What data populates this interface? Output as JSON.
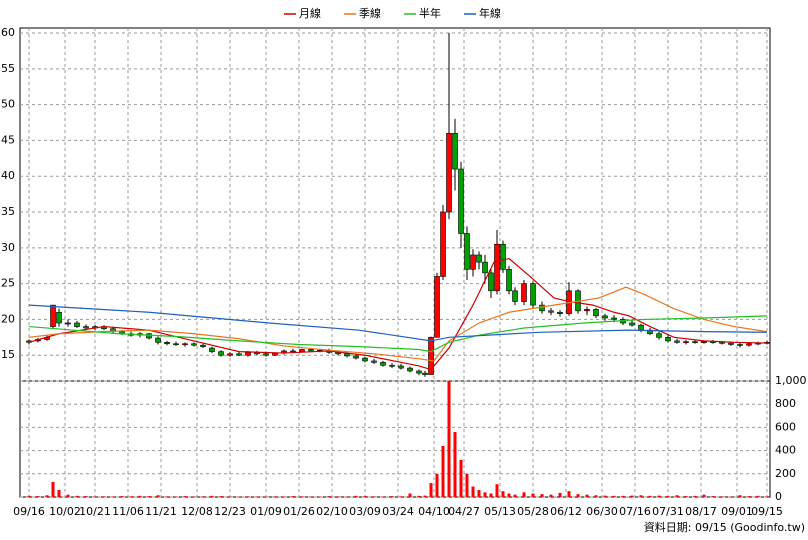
{
  "chart_data": [
    {
      "type": "candlestick",
      "grid": true,
      "legend": "top",
      "up_color": "#ff0000",
      "down_color": "#00a000",
      "xlim": [
        -3,
        247
      ],
      "ylim": [
        11.4,
        60.7
      ],
      "yticks": [
        15,
        20,
        25,
        30,
        35,
        40,
        45,
        50,
        55,
        60
      ],
      "series": [
        {
          "name": "月線",
          "color": "#cc0000",
          "x": [
            0,
            10,
            25,
            40,
            55,
            70,
            85,
            100,
            112,
            130,
            134,
            140,
            148,
            155,
            160,
            167,
            175,
            180,
            188,
            195,
            200,
            207,
            215,
            225,
            235,
            246
          ],
          "values": [
            16.8,
            18,
            19,
            18.5,
            17,
            15.5,
            15.3,
            15.6,
            15,
            13.5,
            13,
            16,
            22,
            28,
            28.5,
            26,
            23,
            22.5,
            22,
            21,
            20.5,
            19,
            17.5,
            17,
            16.8,
            16.7
          ]
        },
        {
          "name": "季線",
          "color": "#e8761e",
          "x": [
            0,
            10,
            25,
            40,
            55,
            70,
            85,
            100,
            115,
            130,
            135,
            140,
            150,
            160,
            175,
            190,
            199,
            205,
            215,
            225,
            235,
            246
          ],
          "values": [
            17.5,
            18,
            18.3,
            18.5,
            18,
            17.3,
            16.3,
            15.7,
            15.2,
            14.5,
            14.2,
            17,
            19.5,
            21,
            22,
            23,
            24.5,
            23.5,
            21.5,
            20,
            19,
            18.3
          ]
        },
        {
          "name": "半年",
          "color": "#22c022",
          "x": [
            0,
            15,
            30,
            50,
            70,
            90,
            110,
            130,
            134,
            140,
            150,
            165,
            185,
            205,
            225,
            246
          ],
          "values": [
            19,
            18.5,
            18,
            17.6,
            17,
            16.5,
            16.2,
            15.8,
            15.5,
            16.8,
            17.8,
            18.8,
            19.5,
            20,
            20.2,
            20.5
          ]
        },
        {
          "name": "年線",
          "color": "#1f5fc0",
          "x": [
            0,
            40,
            80,
            110,
            134,
            140,
            170,
            200,
            225,
            246
          ],
          "values": [
            22,
            21,
            19.5,
            18.5,
            17,
            17.5,
            18.2,
            18.5,
            18.3,
            18.2
          ]
        }
      ],
      "x": [
        0,
        3,
        6,
        8,
        10,
        13,
        16,
        19,
        22,
        25,
        28,
        31,
        34,
        37,
        40,
        43,
        46,
        49,
        52,
        55,
        58,
        61,
        64,
        67,
        70,
        73,
        76,
        79,
        82,
        85,
        88,
        91,
        94,
        97,
        100,
        103,
        106,
        109,
        112,
        115,
        118,
        121,
        124,
        127,
        130,
        132,
        134,
        136,
        138,
        140,
        142,
        144,
        146,
        148,
        150,
        152,
        154,
        156,
        158,
        160,
        162,
        165,
        168,
        171,
        174,
        177,
        180,
        183,
        186,
        189,
        192,
        195,
        198,
        201,
        204,
        207,
        210,
        213,
        216,
        219,
        222,
        225,
        228,
        231,
        234,
        237,
        240,
        243,
        246
      ],
      "ohlc": [
        [
          16.8,
          17.2,
          16.5,
          17
        ],
        [
          17,
          17.4,
          16.8,
          17.2
        ],
        [
          17.2,
          17.8,
          17,
          17.5
        ],
        [
          19,
          22,
          18.8,
          22
        ],
        [
          21,
          21.5,
          19,
          19.5
        ],
        [
          19.5,
          20,
          19,
          19.5
        ],
        [
          19.5,
          19.8,
          18.8,
          19
        ],
        [
          19,
          19.3,
          18.5,
          18.8
        ],
        [
          18.8,
          19.2,
          18.5,
          19
        ],
        [
          19,
          19.2,
          18.5,
          18.7
        ],
        [
          18.7,
          19,
          18,
          18.3
        ],
        [
          18.3,
          18.5,
          17.8,
          18
        ],
        [
          18,
          18.3,
          17.6,
          17.8
        ],
        [
          17.8,
          18.2,
          17.5,
          18
        ],
        [
          18,
          18.1,
          17.2,
          17.4
        ],
        [
          17.4,
          17.6,
          16.5,
          16.8
        ],
        [
          16.8,
          17,
          16.4,
          16.6
        ],
        [
          16.6,
          16.9,
          16.3,
          16.5
        ],
        [
          16.5,
          16.8,
          16.2,
          16.6
        ],
        [
          16.6,
          16.8,
          16.2,
          16.4
        ],
        [
          16.4,
          16.6,
          16,
          16.2
        ],
        [
          16,
          16.2,
          15.3,
          15.5
        ],
        [
          15.5,
          15.7,
          14.8,
          15
        ],
        [
          15,
          15.4,
          14.8,
          15.2
        ],
        [
          15.2,
          15.5,
          14.9,
          15
        ],
        [
          15,
          15.6,
          14.8,
          15.4
        ],
        [
          15.4,
          15.6,
          15,
          15.2
        ],
        [
          15.2,
          15.5,
          14.8,
          15
        ],
        [
          15,
          15.4,
          14.9,
          15.3
        ],
        [
          15.3,
          15.8,
          15.1,
          15.6
        ],
        [
          15.6,
          15.9,
          15.3,
          15.5
        ],
        [
          15.5,
          15.9,
          15.4,
          15.8
        ],
        [
          15.8,
          16,
          15.5,
          15.6
        ],
        [
          15.6,
          15.9,
          15.4,
          15.7
        ],
        [
          15.7,
          15.9,
          15.2,
          15.4
        ],
        [
          15.4,
          15.6,
          15,
          15.2
        ],
        [
          15.2,
          15.4,
          14.7,
          14.9
        ],
        [
          14.9,
          15.1,
          14.4,
          14.6
        ],
        [
          14.6,
          14.8,
          14,
          14.2
        ],
        [
          14.2,
          14.5,
          13.8,
          14
        ],
        [
          14,
          14.2,
          13.4,
          13.6
        ],
        [
          13.6,
          13.9,
          13.2,
          13.5
        ],
        [
          13.5,
          13.8,
          13,
          13.2
        ],
        [
          13.2,
          13.4,
          12.6,
          12.8
        ],
        [
          12.8,
          13,
          12.2,
          12.5
        ],
        [
          12.5,
          12.8,
          12,
          12.3
        ],
        [
          12.3,
          17.6,
          12.3,
          17.5
        ],
        [
          17.5,
          26.5,
          17.5,
          26
        ],
        [
          26,
          36,
          25.5,
          35
        ],
        [
          35,
          60,
          34,
          46
        ],
        [
          46,
          48,
          38,
          41
        ],
        [
          41,
          42,
          30,
          32
        ],
        [
          32,
          33,
          25.5,
          27
        ],
        [
          27,
          29.8,
          26,
          29
        ],
        [
          29,
          29.5,
          27,
          28
        ],
        [
          28,
          29,
          25,
          26.5
        ],
        [
          26.5,
          27,
          23,
          24
        ],
        [
          24,
          32.5,
          23.5,
          30.5
        ],
        [
          30.5,
          31,
          26.5,
          27
        ],
        [
          27,
          27.5,
          23.5,
          24
        ],
        [
          24,
          24.5,
          22,
          22.5
        ],
        [
          22.5,
          25.5,
          22,
          25
        ],
        [
          25,
          25.3,
          21.5,
          22
        ],
        [
          22,
          22.5,
          20.8,
          21.2
        ],
        [
          21.2,
          21.6,
          20.6,
          21
        ],
        [
          21,
          21.3,
          20.4,
          20.8
        ],
        [
          20.8,
          25.2,
          20.5,
          24
        ],
        [
          24,
          24.2,
          20.8,
          21.2
        ],
        [
          21.2,
          21.8,
          20.6,
          21.4
        ],
        [
          21.4,
          21.6,
          20.2,
          20.5
        ],
        [
          20.5,
          20.8,
          19.8,
          20.2
        ],
        [
          20.2,
          20.6,
          19.6,
          20
        ],
        [
          20,
          20.3,
          19.2,
          19.5
        ],
        [
          19.5,
          20,
          19,
          19.2
        ],
        [
          19.2,
          19.4,
          18.2,
          18.5
        ],
        [
          18.5,
          18.8,
          17.8,
          18
        ],
        [
          18,
          18.3,
          17.2,
          17.5
        ],
        [
          17.5,
          17.8,
          16.8,
          17
        ],
        [
          17,
          17.3,
          16.6,
          16.8
        ],
        [
          16.8,
          17.1,
          16.5,
          16.9
        ],
        [
          16.9,
          17.1,
          16.6,
          16.8
        ],
        [
          16.8,
          17,
          16.6,
          16.9
        ],
        [
          16.9,
          17.1,
          16.6,
          16.8
        ],
        [
          16.8,
          17,
          16.5,
          16.7
        ],
        [
          16.7,
          16.9,
          16.3,
          16.5
        ],
        [
          16.5,
          16.8,
          16.1,
          16.4
        ],
        [
          16.4,
          16.8,
          16.2,
          16.6
        ],
        [
          16.6,
          16.9,
          16.4,
          16.7
        ],
        [
          16.7,
          17,
          16.5,
          16.8
        ]
      ]
    },
    {
      "type": "bar",
      "grid": true,
      "color": "#ff0000",
      "xlim": [
        -3,
        247
      ],
      "ylim": [
        0,
        1000
      ],
      "yticks": [
        0,
        200,
        400,
        600,
        800,
        {
          "value": 1000,
          "label": "1,000"
        }
      ],
      "xticks": [
        {
          "value": 0,
          "label": "09/16"
        },
        {
          "value": 12,
          "label": "10/02"
        },
        {
          "value": 22,
          "label": "10/21"
        },
        {
          "value": 33,
          "label": "11/06"
        },
        {
          "value": 44,
          "label": "11/21"
        },
        {
          "value": 56,
          "label": "12/08"
        },
        {
          "value": 67,
          "label": "12/23"
        },
        {
          "value": 79,
          "label": "01/09"
        },
        {
          "value": 90,
          "label": "01/26"
        },
        {
          "value": 101,
          "label": "02/10"
        },
        {
          "value": 112,
          "label": "03/09"
        },
        {
          "value": 123,
          "label": "03/24"
        },
        {
          "value": 135,
          "label": "04/10"
        },
        {
          "value": 145,
          "label": "04/27"
        },
        {
          "value": 157,
          "label": "05/13"
        },
        {
          "value": 168,
          "label": "05/28"
        },
        {
          "value": 179,
          "label": "06/12"
        },
        {
          "value": 191,
          "label": "06/30"
        },
        {
          "value": 202,
          "label": "07/16"
        },
        {
          "value": 213,
          "label": "07/31"
        },
        {
          "value": 224,
          "label": "08/17"
        },
        {
          "value": 236,
          "label": "09/01"
        },
        {
          "value": 246,
          "label": "09/15"
        }
      ],
      "footnote": "資料日期: 09/15 (Goodinfo.tw)",
      "x": [
        0,
        3,
        6,
        8,
        10,
        13,
        16,
        19,
        22,
        25,
        28,
        31,
        34,
        37,
        40,
        43,
        46,
        49,
        52,
        55,
        58,
        61,
        64,
        67,
        70,
        73,
        76,
        79,
        82,
        85,
        88,
        91,
        94,
        97,
        100,
        103,
        106,
        109,
        112,
        115,
        118,
        121,
        124,
        127,
        130,
        132,
        134,
        136,
        138,
        140,
        142,
        144,
        146,
        148,
        150,
        152,
        154,
        156,
        158,
        160,
        162,
        165,
        168,
        171,
        174,
        177,
        180,
        183,
        186,
        189,
        192,
        195,
        198,
        201,
        204,
        207,
        210,
        213,
        216,
        219,
        222,
        225,
        228,
        231,
        234,
        237,
        240,
        243,
        246
      ],
      "values": [
        10,
        8,
        15,
        130,
        60,
        20,
        10,
        8,
        5,
        6,
        5,
        8,
        6,
        10,
        8,
        15,
        6,
        5,
        8,
        5,
        6,
        10,
        8,
        5,
        4,
        6,
        5,
        4,
        6,
        5,
        8,
        6,
        5,
        4,
        8,
        6,
        5,
        10,
        8,
        6,
        5,
        8,
        6,
        30,
        10,
        12,
        120,
        200,
        440,
        1000,
        560,
        320,
        200,
        90,
        60,
        40,
        30,
        110,
        50,
        30,
        20,
        40,
        30,
        25,
        20,
        35,
        50,
        25,
        20,
        15,
        12,
        10,
        10,
        12,
        15,
        10,
        12,
        8,
        15,
        8,
        10,
        20,
        8,
        6,
        5,
        15,
        8,
        10,
        6
      ]
    }
  ]
}
